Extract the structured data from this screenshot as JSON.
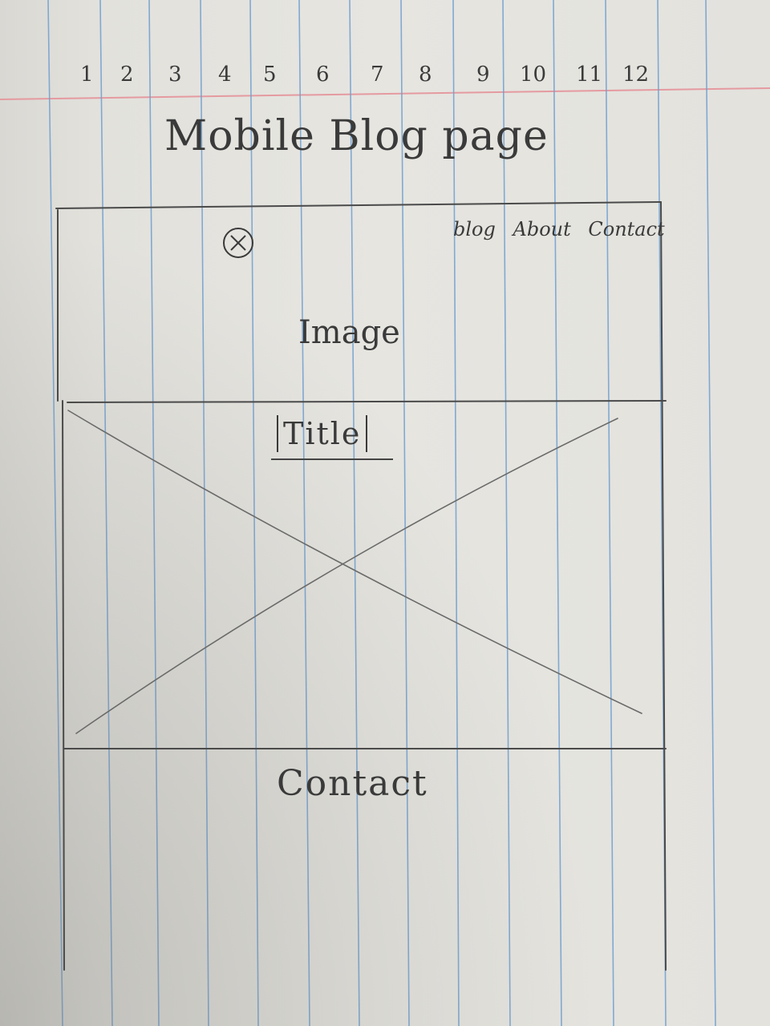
{
  "grid_numbers": [
    "1",
    "2",
    "3",
    "4",
    "5",
    "6",
    "7",
    "8",
    "9",
    "10",
    "11",
    "12"
  ],
  "page_title": "Mobile Blog page",
  "nav": {
    "items": [
      "blog",
      "About",
      "Contact"
    ]
  },
  "hero": {
    "image_label": "Image"
  },
  "post": {
    "title_label": "Title"
  },
  "footer": {
    "contact_label": "Contact"
  },
  "colors": {
    "paper": "#e6e5e0",
    "rule_blue": "#6f9fd0",
    "margin_red": "#e59aa0",
    "pencil": "#3a3a3a"
  }
}
